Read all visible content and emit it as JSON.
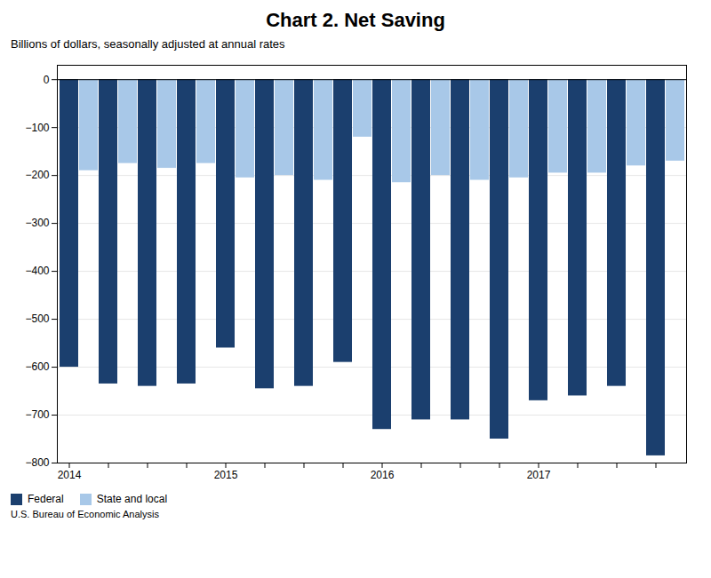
{
  "chart_data": {
    "type": "bar",
    "title": "Chart 2. Net Saving",
    "subtitle": "Billions of dollars, seasonally adjusted at annual rates",
    "footnote": "U.S. Bureau of Economic Analysis",
    "categories": [
      "2014",
      null,
      null,
      null,
      "2015",
      null,
      null,
      null,
      "2016",
      null,
      null,
      null,
      "2017",
      null,
      null,
      null
    ],
    "series": [
      {
        "name": "Federal",
        "color": "#1b3f6e",
        "values": [
          -600,
          -635,
          -640,
          -635,
          -560,
          -645,
          -640,
          -590,
          -730,
          -710,
          -710,
          -750,
          -670,
          -660,
          -640,
          -785
        ]
      },
      {
        "name": "State and local",
        "color": "#a8c8e8",
        "values": [
          -190,
          -175,
          -185,
          -175,
          -205,
          -200,
          -210,
          -120,
          -215,
          -200,
          -210,
          -205,
          -195,
          -195,
          -180,
          -170
        ]
      }
    ],
    "ylim": [
      -800,
      30
    ],
    "yticks": [
      0,
      {
        "value": -100,
        "label": "−100"
      },
      {
        "value": -200,
        "label": "−200"
      },
      {
        "value": -300,
        "label": "−300"
      },
      {
        "value": -400,
        "label": "−400"
      },
      {
        "value": -500,
        "label": "−500"
      },
      {
        "value": -600,
        "label": "−600"
      },
      {
        "value": -700,
        "label": "−700"
      },
      {
        "value": -800,
        "label": "−800"
      }
    ],
    "grid": true,
    "legend": "lower left"
  }
}
